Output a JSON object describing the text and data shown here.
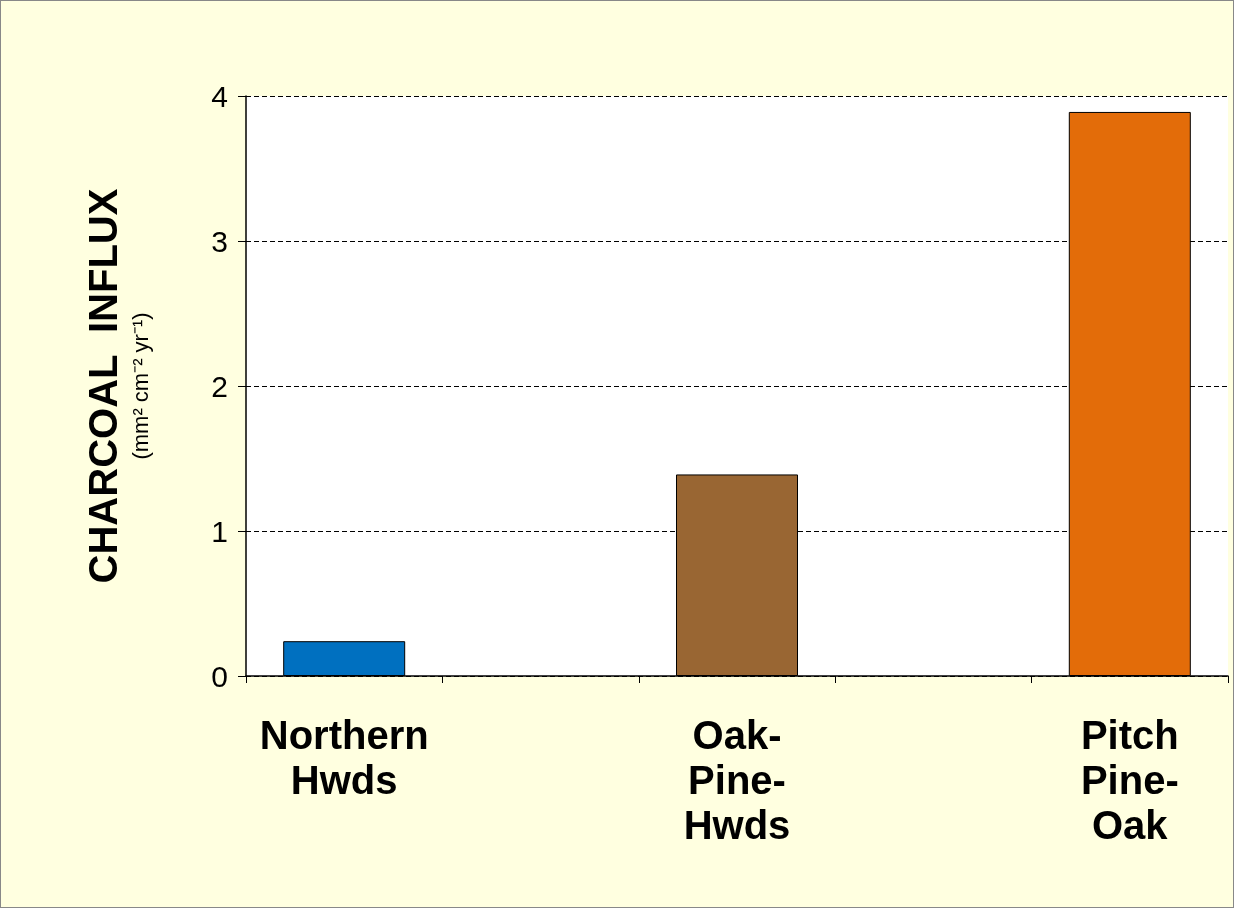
{
  "chart_data": {
    "type": "bar",
    "ylabel": "CHARCOAL  INFLUX (mm² cm⁻² yr⁻¹)",
    "categories": [
      "Northern\nHwds",
      null,
      "Oak-\nPine-\nHwds",
      null,
      "Pitch\nPine-\nOak"
    ],
    "values": [
      0.24,
      null,
      1.39,
      null,
      3.89
    ],
    "colors": [
      "#0070c0",
      null,
      "#996633",
      null,
      "#e36c09"
    ],
    "ylim": [
      0,
      4
    ],
    "yticks": [
      0,
      1,
      2,
      3,
      4
    ],
    "grid": "y"
  }
}
